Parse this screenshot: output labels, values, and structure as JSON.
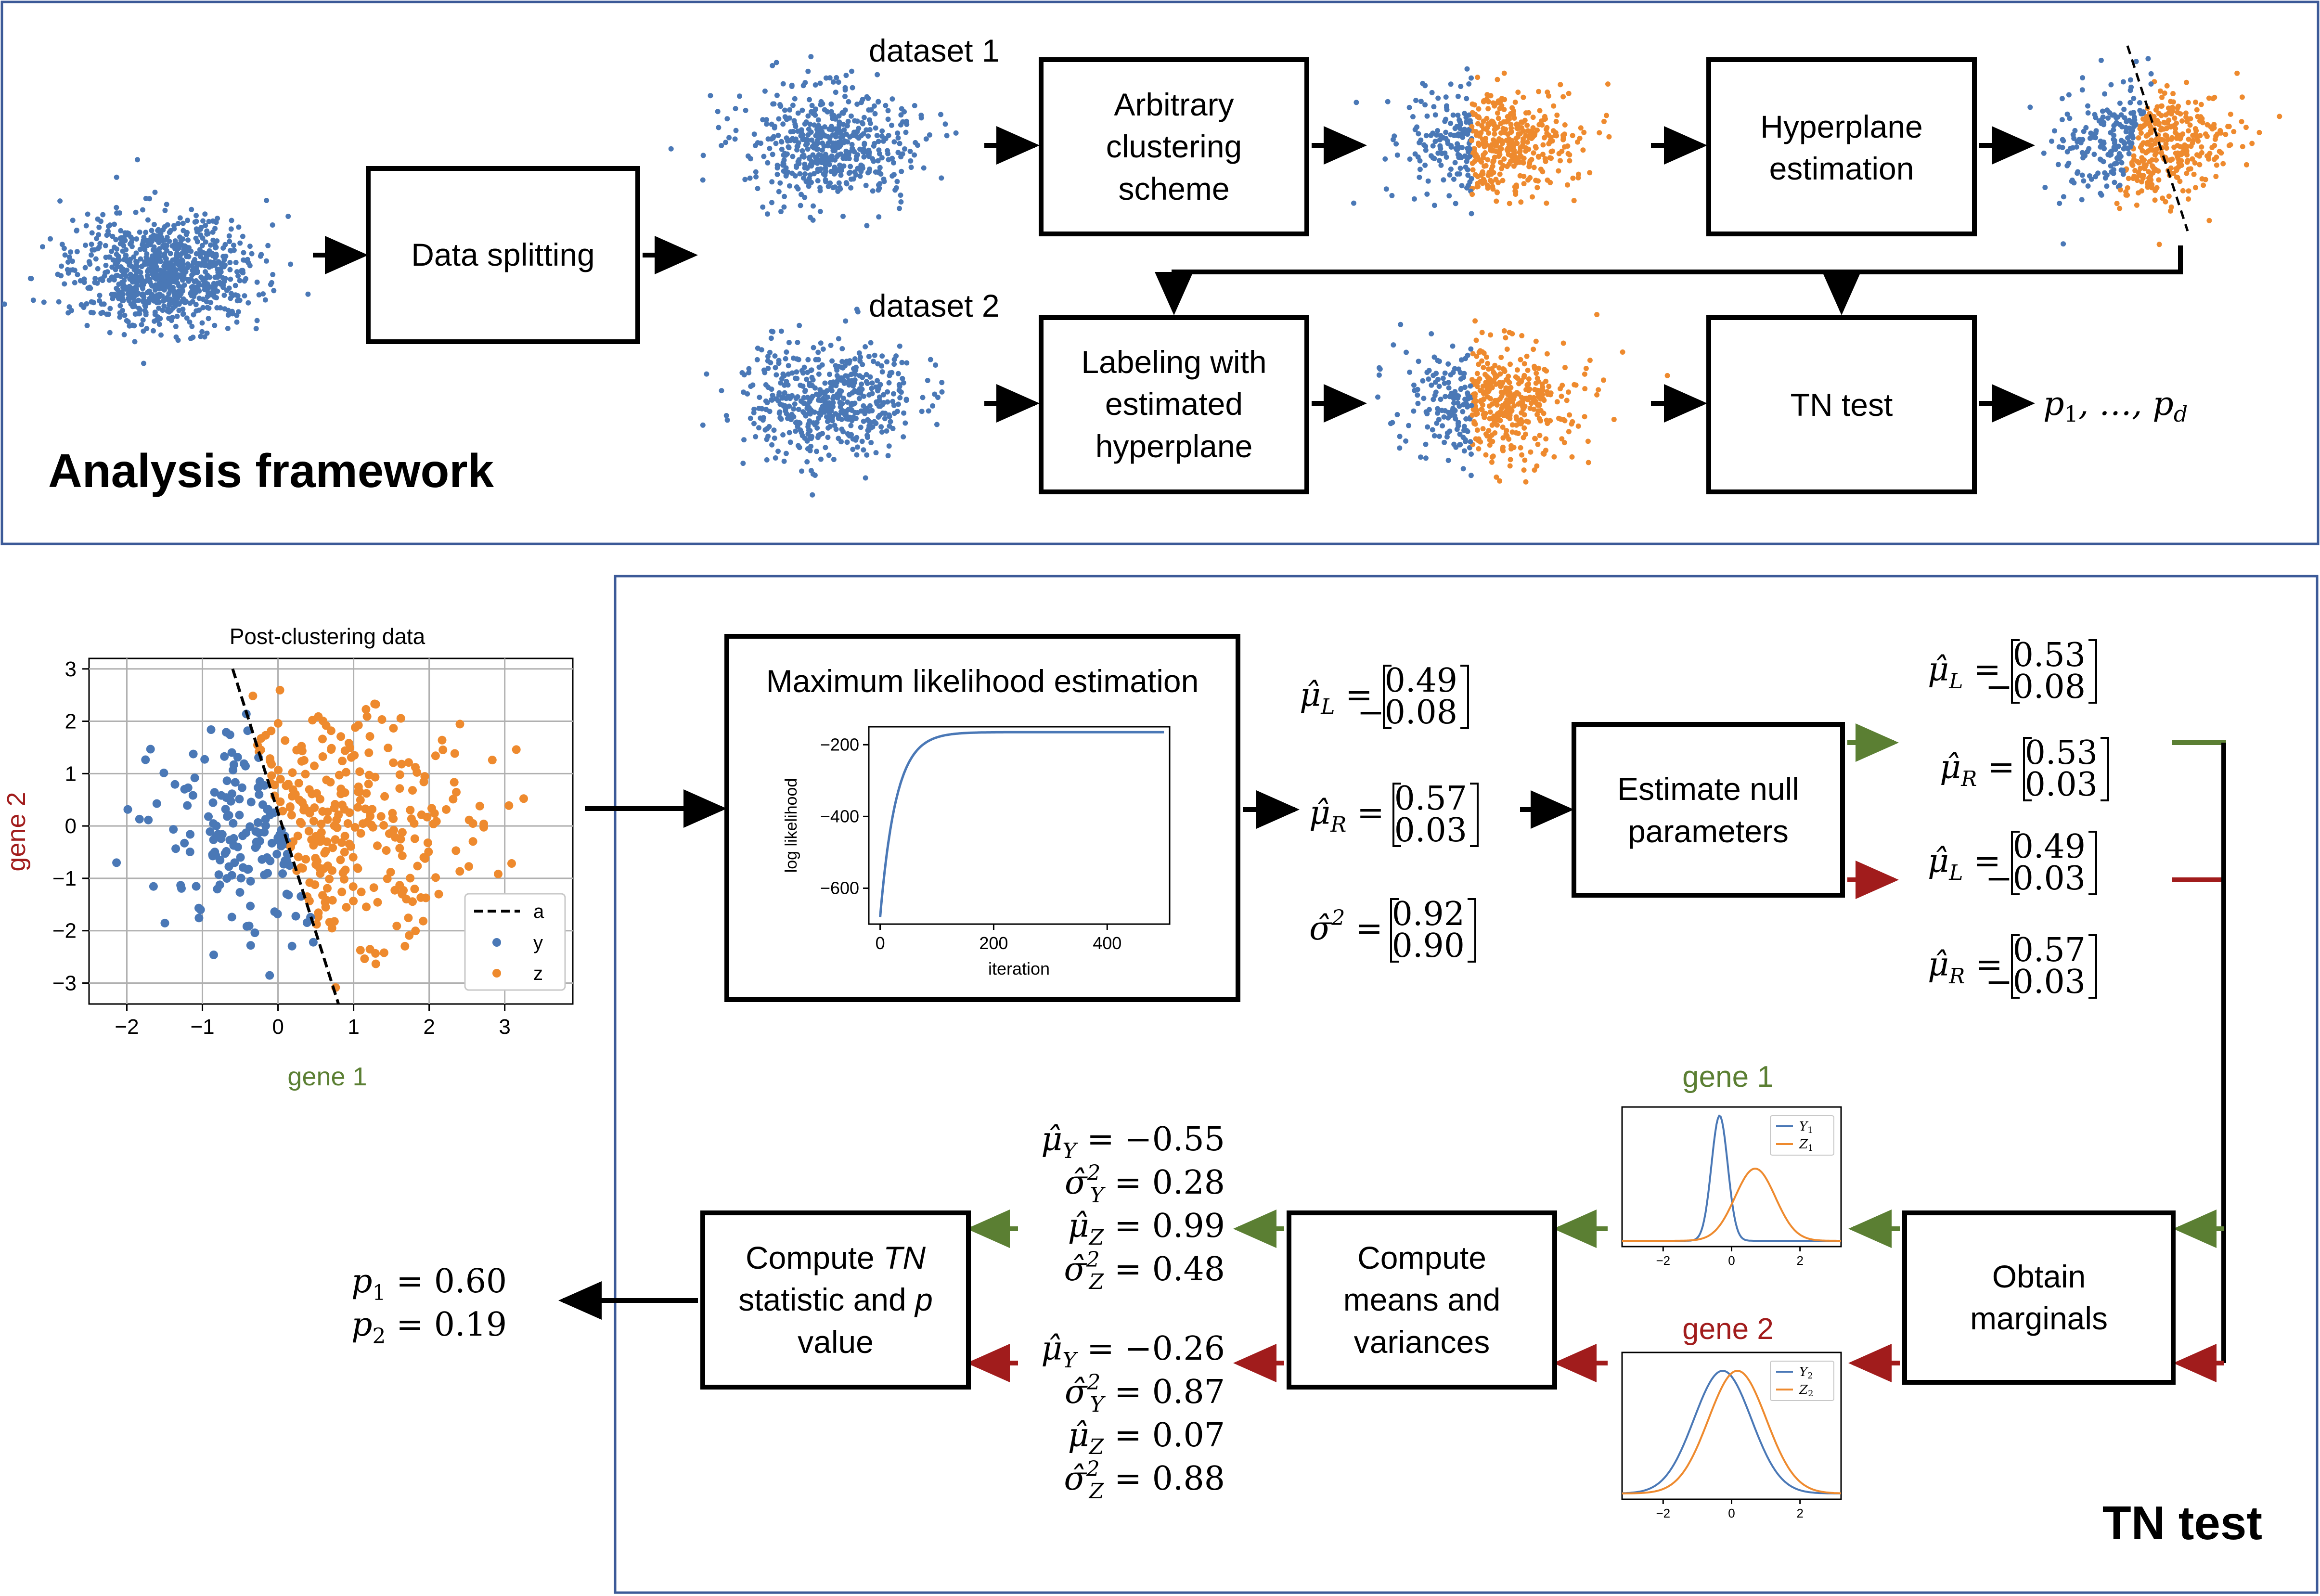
{
  "colors": {
    "blue": "#4a78b6",
    "orange": "#ee8a2e",
    "green": "#5b7f33",
    "red": "#a11c1c",
    "frame": "#3c5a98"
  },
  "framework": {
    "title": "Analysis framework",
    "dataset1_label": "dataset 1",
    "dataset2_label": "dataset 2",
    "box_data_splitting": "Data splitting",
    "box_clustering": [
      "Arbitrary",
      "clustering",
      "scheme"
    ],
    "box_hyperplane": [
      "Hyperplane",
      "estimation"
    ],
    "box_labeling": [
      "Labeling with",
      "estimated",
      "hyperplane"
    ],
    "box_tn_test": "TN test",
    "pvalues_output": "p",
    "pvalues_sub1": "1",
    "pvalues_mid": ", …, p",
    "pvalues_subd": "d"
  },
  "tn_test": {
    "title": "TN test",
    "box_mle": "Maximum likelihood estimation",
    "box_null": [
      "Estimate null",
      "parameters"
    ],
    "box_marginals": [
      "Obtain",
      "marginals"
    ],
    "box_means": [
      "Compute",
      "means and",
      "variances"
    ],
    "box_statistic_line1_pre": "Compute ",
    "box_statistic_line1_it": "TN",
    "box_statistic_line2_pre": "statistic and ",
    "box_statistic_line2_it": "p",
    "box_statistic_line3": "value",
    "gene1_label": "gene 1",
    "gene2_label": "gene 2",
    "mle_estimates": {
      "mu_L": [
        "0.49",
        "−0.08"
      ],
      "mu_R": [
        "0.57",
        "0.03"
      ],
      "sigma2": [
        "0.92",
        "0.90"
      ]
    },
    "null_green": {
      "mu_L": [
        "0.53",
        "−0.08"
      ],
      "mu_R": [
        "0.53",
        "0.03"
      ]
    },
    "null_red": {
      "mu_L": [
        "0.49",
        "−0.03"
      ],
      "mu_R": [
        "0.57",
        "−0.03"
      ]
    },
    "gene1_stats": [
      {
        "sym": "μ̂",
        "sub": "Y",
        "sup": "",
        "val": " = −0.55"
      },
      {
        "sym": "σ̂",
        "sub": "Y",
        "sup": "2",
        "val": " = 0.28"
      },
      {
        "sym": "μ̂",
        "sub": "Z",
        "sup": "",
        "val": " = 0.99"
      },
      {
        "sym": "σ̂",
        "sub": "Z",
        "sup": "2",
        "val": " = 0.48"
      }
    ],
    "gene2_stats": [
      {
        "sym": "μ̂",
        "sub": "Y",
        "sup": "",
        "val": " = −0.26"
      },
      {
        "sym": "σ̂",
        "sub": "Y",
        "sup": "2",
        "val": " = 0.87"
      },
      {
        "sym": "μ̂",
        "sub": "Z",
        "sup": "",
        "val": " = 0.07"
      },
      {
        "sym": "σ̂",
        "sub": "Z",
        "sup": "2",
        "val": " = 0.88"
      }
    ],
    "p_values": [
      {
        "sub": "1",
        "val": " = 0.60"
      },
      {
        "sub": "2",
        "val": " = 0.19"
      }
    ]
  },
  "chart_data": [
    {
      "type": "scatter",
      "title": "Post-clustering data",
      "xlabel": "gene 1",
      "ylabel": "gene 2",
      "xlim": [
        -2.5,
        3.9
      ],
      "ylim": [
        -3.4,
        3.2
      ],
      "xticks": [
        "−2",
        "−1",
        "0",
        "1",
        "2",
        "3"
      ],
      "yticks": [
        "3",
        "2",
        "1",
        "0",
        "−1",
        "−2",
        "−3"
      ],
      "grid": true,
      "legend": {
        "placement": "lower-right",
        "entries": [
          "a",
          "y",
          "z"
        ]
      },
      "series": [
        {
          "name": "a",
          "kind": "dashed-line",
          "points": [
            [
              -0.6,
              3.0
            ],
            [
              0.8,
              -3.4
            ]
          ]
        },
        {
          "name": "y",
          "kind": "points"
        },
        {
          "name": "z",
          "kind": "points"
        }
      ]
    },
    {
      "type": "line",
      "xlabel": "iteration",
      "ylabel": "log likelihood",
      "xlim": [
        -20,
        510
      ],
      "ylim": [
        -700,
        -150
      ],
      "xticks": [
        "0",
        "200",
        "400"
      ],
      "yticks": [
        "−200",
        "−400",
        "−600"
      ],
      "curve": "rises from about −680 at iteration 0 to about −165 by iteration 500"
    },
    {
      "type": "line",
      "xlim": [
        -3.2,
        3.2
      ],
      "xticks": [
        "−2",
        "0",
        "2"
      ],
      "legend": {
        "placement": "top-right"
      },
      "series": [
        {
          "name": "Y",
          "sub": "1",
          "mean": -0.55,
          "var": 0.28
        },
        {
          "name": "Z",
          "sub": "1",
          "mean": 0.99,
          "var": 0.48
        }
      ]
    },
    {
      "type": "line",
      "xlim": [
        -3.2,
        3.2
      ],
      "xticks": [
        "−2",
        "0",
        "2"
      ],
      "legend": {
        "placement": "top-right"
      },
      "series": [
        {
          "name": "Y",
          "sub": "2",
          "mean": -0.26,
          "var": 0.87
        },
        {
          "name": "Z",
          "sub": "2",
          "mean": 0.07,
          "var": 0.88
        }
      ]
    }
  ]
}
